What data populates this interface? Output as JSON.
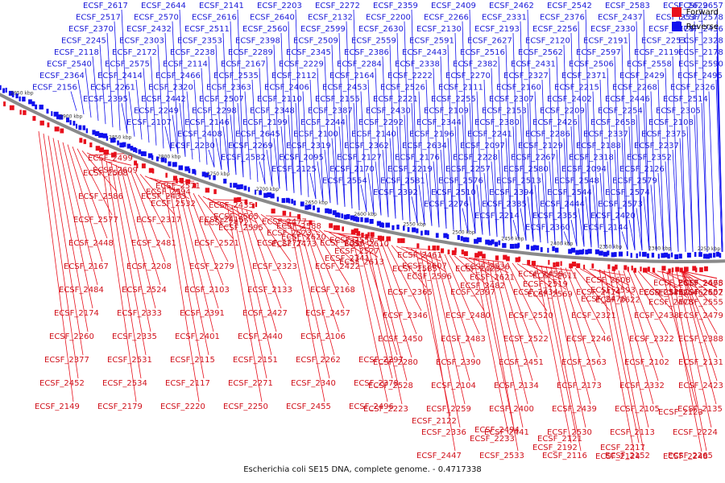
{
  "legend": {
    "forward": {
      "label": "Forward",
      "color": "#e8101c"
    },
    "reverse": {
      "label": "Reverse",
      "color": "#1010ee"
    }
  },
  "caption": "Escherichia coli SE15 DNA, complete genome. - 0.4717338",
  "scale_ticks": [
    "2250 kbp",
    "2300 kbp",
    "2350 kbp",
    "2400 kbp",
    "2450 kbp",
    "2500 kbp",
    "2550 kbp",
    "2600 kbp",
    "2650 kbp",
    "2700 kbp",
    "2750 kbp",
    "2800 kbp",
    "2850 kbp",
    "2900 kbp",
    "2950 kbp"
  ],
  "reverse_labels": [
    "ECSF_2657",
    "ECSF_2629",
    "ECSF_2583",
    "ECSF_2542",
    "ECSF_2462",
    "ECSF_2409",
    "ECSF_2359",
    "ECSF_2272",
    "ECSF_2203",
    "ECSF_2141",
    "ECSF_2644",
    "ECSF_2617",
    "ECSF_2578",
    "ECSF_2537",
    "ECSF_2437",
    "ECSF_2376",
    "ECSF_2331",
    "ECSF_2266",
    "ECSF_2200",
    "ECSF_2132",
    "ECSF_2640",
    "ECSF_2616",
    "ECSF_2570",
    "ECSF_2517",
    "ECSF_2436",
    "ECSF_2374",
    "ECSF_2330",
    "ECSF_2256",
    "ECSF_2193",
    "ECSF_2130",
    "ECSF_2630",
    "ECSF_2599",
    "ECSF_2560",
    "ECSF_2511",
    "ECSF_2432",
    "ECSF_2370",
    "ECSF_2328",
    "ECSF_2253",
    "ECSF_2191",
    "ECSF_2120",
    "ECSF_2627",
    "ECSF_2591",
    "ECSF_2559",
    "ECSF_2509",
    "ECSF_2398",
    "ECSF_2353",
    "ECSF_2303",
    "ECSF_2245",
    "ECSF_2178",
    "ECSF_2119",
    "ECSF_2597",
    "ECSF_2562",
    "ECSF_2516",
    "ECSF_2443",
    "ECSF_2386",
    "ECSF_2345",
    "ECSF_2289",
    "ECSF_2238",
    "ECSF_2172",
    "ECSF_2118",
    "ECSF_2590",
    "ECSF_2558",
    "ECSF_2506",
    "ECSF_2431",
    "ECSF_2382",
    "ECSF_2338",
    "ECSF_2284",
    "ECSF_2229",
    "ECSF_2167",
    "ECSF_2114",
    "ECSF_2575",
    "ECSF_2540",
    "ECSF_2495",
    "ECSF_2429",
    "ECSF_2371",
    "ECSF_2327",
    "ECSF_2270",
    "ECSF_2222",
    "ECSF_2164",
    "ECSF_2112",
    "ECSF_2535",
    "ECSF_2466",
    "ECSF_2414",
    "ECSF_2364",
    "ECSF_2326",
    "ECSF_2268",
    "ECSF_2215",
    "ECSF_2160",
    "ECSF_2111",
    "ECSF_2526",
    "ECSF_2453",
    "ECSF_2406",
    "ECSF_2363",
    "ECSF_2320",
    "ECSF_2261",
    "ECSF_2156",
    "ECSF_2514",
    "ECSF_2446",
    "ECSF_2402",
    "ECSF_2307",
    "ECSF_2255",
    "ECSF_2221",
    "ECSF_2155",
    "ECSF_2110",
    "ECSF_2507",
    "ECSF_2442",
    "ECSF_2395",
    "ECSF_2351",
    "ECSF_2305",
    "ECSF_2254",
    "ECSF_2209",
    "ECSF_2153",
    "ECSF_2109",
    "ECSF_2430",
    "ECSF_2387",
    "ECSF_2348",
    "ECSF_2298",
    "ECSF_2249",
    "ECSF_2202",
    "ECSF_2148",
    "ECSF_2108",
    "ECSF_2658",
    "ECSF_2426",
    "ECSF_2380",
    "ECSF_2344",
    "ECSF_2292",
    "ECSF_2244",
    "ECSF_2199",
    "ECSF_2146",
    "ECSF_2107",
    "ECSF_2635",
    "ECSF_2416",
    "ECSF_2375",
    "ECSF_2337",
    "ECSF_2286",
    "ECSF_2241",
    "ECSF_2196",
    "ECSF_2140",
    "ECSF_2100",
    "ECSF_2645",
    "ECSF_2408",
    "ECSF_2366",
    "ECSF_2329",
    "ECSF_2282",
    "ECSF_2237",
    "ECSF_2188",
    "ECSF_2129",
    "ECSF_2097",
    "ECSF_2634",
    "ECSF_2362",
    "ECSF_2319",
    "ECSF_2269",
    "ECSF_2230",
    "ECSF_2177",
    "ECSF_2128",
    "ECSF_2096",
    "ECSF_2352",
    "ECSF_2318",
    "ECSF_2267",
    "ECSF_2228",
    "ECSF_2176",
    "ECSF_2127",
    "ECSF_2095",
    "ECSF_2582",
    "ECSF_2315",
    "ECSF_2263",
    "ECSF_2226",
    "ECSF_2171",
    "ECSF_2126",
    "ECSF_2094",
    "ECSF_2580",
    "ECSF_2257",
    "ECSF_2219",
    "ECSF_2170",
    "ECSF_2125",
    "ECSF_2093",
    "ECSF_2218",
    "ECSF_2169",
    "ECSF_2553",
    "ECSF_2518",
    "ECSF_2579",
    "ECSF_2548",
    "ECSF_2513",
    "ECSF_2576",
    "ECSF_2581",
    "ECSF_2554",
    "ECSF_2584",
    "ECSF_2561",
    "ECSF_2491",
    "ECSF_2543",
    "ECSF_2572",
    "ECSF_2449",
    "ECSF_2574",
    "ECSF_2544",
    "ECSF_2394",
    "ECSF_2510",
    "ECSF_2392",
    "ECSF_2361",
    "ECSF_2489",
    "ECSF_2492",
    "ECSF_2403",
    "ECSF_2349",
    "ECSF_2545",
    "ECSF_2512",
    "ECSF_2573",
    "ECSF_2444",
    "ECSF_2385",
    "ECSF_2276",
    "ECSF_2242",
    "ECSF_2547",
    "ECSF_2515",
    "ECSF_2399",
    "ECSF_2367",
    "ECSF_2245",
    "ECSF_2210",
    "ECSF_2550",
    "ECSF_2420",
    "ECSF_2355",
    "ECSF_2214",
    "ECSF_2551",
    "ECSF_2389",
    "ECSF_2247",
    "ECSF_2216",
    "ECSF_2552",
    "ECSF_2357",
    "ECSF_2358",
    "ECSF_2293",
    "ECSF_2258",
    "ECSF_2144",
    "ECSF_2360",
    "ECSF_2184",
    "ECSF_2485",
    "ECSF_2294",
    "ECSF_2185",
    "ECSF_2150",
    "ECSF_2529",
    "ECSF_2368",
    "ECSF_2334",
    "ECSF_2225",
    "ECSF_2186",
    "ECSF_2487",
    "ECSF_2369",
    "ECSF_2295",
    "ECSF_2404",
    "ECSF_2373",
    "ECSF_2301",
    "ECSF_2227",
    "ECSF_2189",
    "ECSF_2154",
    "ECSF_2488",
    "ECSF_2405",
    "ECSF_2231",
    "ECSF_2192",
    "ECSF_2157",
    "ECSF_2445",
    "ECSF_2302",
    "ECSF_2194",
    "ECSF_2158",
    "ECSF_2490",
    "ECSF_2407",
    "ECSF_2306",
    "ECSF_2195",
    "ECSF_2159",
    "ECSF_2493",
    "ECSF_2410",
    "ECSF_2538",
    "ECSF_2454"
  ],
  "forward_labels": [
    "ECSF_2668",
    "ECSF_2646",
    "ECSF_2622",
    "ECSF_2611",
    "ECSF_2621",
    "ECSF_2596",
    "ECSF_2610",
    "ECSF_2620",
    "ECSF_2595",
    "ECSF_2571",
    "ECSF_2609",
    "ECSF_2555",
    "ECSF_2619",
    "ECSF_2593",
    "ECSF_2569",
    "ECSF_2536",
    "ECSF_2607",
    "ECSF_2613",
    "ECSF_2588",
    "ECSF_2565",
    "ECSF_2532",
    "ECSF_2499",
    "ECSF_2602",
    "ECSF_2478",
    "ECSF_2608",
    "ECSF_2519",
    "ECSF_2482",
    "ECSF_2461",
    "ECSF_2527",
    "ECSF_2473",
    "ECSF_2435",
    "ECSF_2594",
    "ECSF_2508",
    "ECSF_2475",
    "ECSF_2421",
    "ECSF_2476",
    "ECSF_2456",
    "ECSF_2425",
    "ECSF_2585",
    "ECSF_2556",
    "ECSF_2523",
    "ECSF_2472",
    "ECSF_2433",
    "ECSF_2586",
    "ECSF_2557",
    "ECSF_2525",
    "ECSF_2474",
    "ECSF_2434",
    "ECSF_2397",
    "ECSF_2365",
    "ECSF_2341",
    "ECSF_2477",
    "ECSF_2415",
    "ECSF_2317",
    "ECSF_2577",
    "ECSF_2479",
    "ECSF_2438",
    "ECSF_2321",
    "ECSF_2520",
    "ECSF_2480",
    "ECSF_2346",
    "ECSF_2316",
    "ECSF_2277",
    "ECSF_2521",
    "ECSF_2481",
    "ECSF_2448",
    "ECSF_2388",
    "ECSF_2322",
    "ECSF_2246",
    "ECSF_2522",
    "ECSF_2483",
    "ECSF_2450",
    "ECSF_2422",
    "ECSF_2323",
    "ECSF_2279",
    "ECSF_2208",
    "ECSF_2167",
    "ECSF_2131",
    "ECSF_2102",
    "ECSF_2563",
    "ECSF_2451",
    "ECSF_2390",
    "ECSF_2280",
    "ECSF_2168",
    "ECSF_2133",
    "ECSF_2103",
    "ECSF_2524",
    "ECSF_2484",
    "ECSF_2423",
    "ECSF_2332",
    "ECSF_2173",
    "ECSF_2134",
    "ECSF_2104",
    "ECSF_2528",
    "ECSF_2457",
    "ECSF_2427",
    "ECSF_2391",
    "ECSF_2333",
    "ECSF_2174",
    "ECSF_2135",
    "ECSF_2105",
    "ECSF_2439",
    "ECSF_2400",
    "ECSF_2259",
    "ECSF_2223",
    "ECSF_2106",
    "ECSF_2440",
    "ECSF_2401",
    "ECSF_2335",
    "ECSF_2260",
    "ECSF_2224",
    "ECSF_2113",
    "ECSF_2530",
    "ECSF_2441",
    "ECSF_2336",
    "ECSF_2297",
    "ECSF_2262",
    "ECSF_2151",
    "ECSF_2115",
    "ECSF_2531",
    "ECSF_2377",
    "ECSF_2265",
    "ECSF_2152",
    "ECSF_2116",
    "ECSF_2533",
    "ECSF_2447",
    "ECSF_2378",
    "ECSF_2340",
    "ECSF_2271",
    "ECSF_2117",
    "ECSF_2534",
    "ECSF_2452",
    "ECSF_2248",
    "ECSF_2217",
    "ECSF_2121",
    "ECSF_2494",
    "ECSF_2122",
    "ECSF_2496",
    "ECSF_2455",
    "ECSF_2250",
    "ECSF_2220",
    "ECSF_2179",
    "ECSF_2149",
    "ECSF_2123",
    "ECSF_2124",
    "ECSF_2192",
    "ECSF_2233"
  ]
}
